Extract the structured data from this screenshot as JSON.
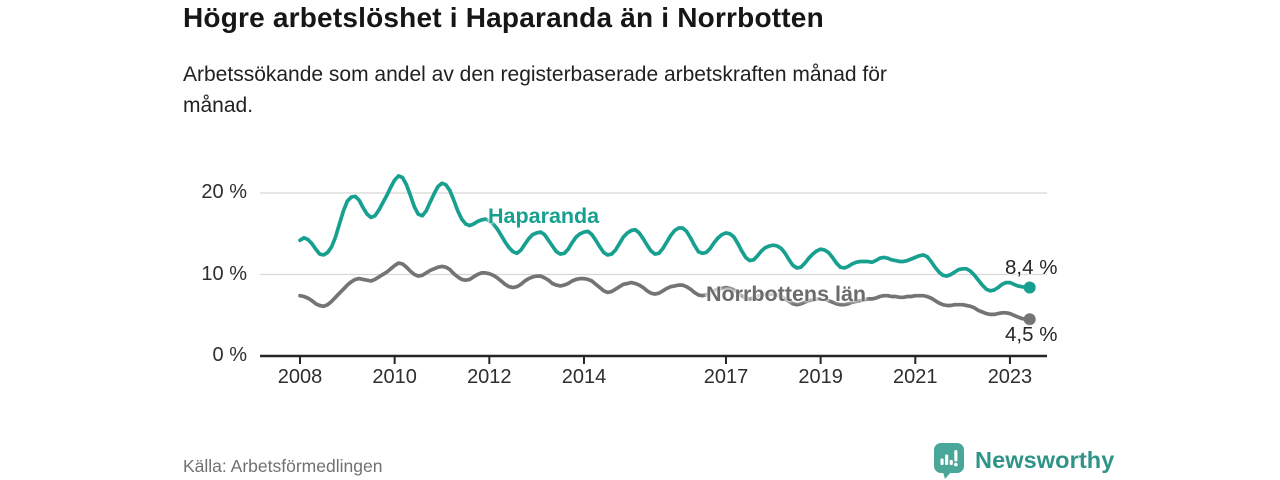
{
  "header": {
    "title": "Högre arbetslöshet i Haparanda än i Norrbotten",
    "subtitle": "Arbetssökande som andel av den registerbaserade arbetskraften månad för\nmånad."
  },
  "footer": {
    "source": "Källa: Arbetsförmedlingen",
    "brand": "Newsworthy",
    "brand_icon": "newsworthy-chart-bubble-icon"
  },
  "colors": {
    "haparanda": "#17a08f",
    "norrbotten": "#747474",
    "grid": "#d8d8d8",
    "axis": "#262626",
    "axis_text": "#2e2e2e",
    "title_text": "#161616",
    "muted_text": "#717171",
    "brand_icon_bg": "#4ba69a",
    "brand_text": "#2f9488"
  },
  "chart_data": {
    "type": "line",
    "title": "Högre arbetslöshet i Haparanda än i Norrbotten",
    "subtitle": "Arbetssökande som andel av den registerbaserade arbetskraften månad för månad.",
    "xlabel": "",
    "ylabel": "",
    "x_start_year": 2008,
    "x_step_months": 1,
    "xlim": [
      2007.2,
      2023.8
    ],
    "ylim": [
      0,
      24
    ],
    "grid": "horizontal",
    "legend_position": "inline-labels",
    "x_ticks": [
      2008,
      2010,
      2012,
      2014,
      2017,
      2019,
      2021,
      2023
    ],
    "x_tick_labels": [
      "2008",
      "2010",
      "2012",
      "2014",
      "2017",
      "2019",
      "2021",
      "2023"
    ],
    "y_ticks": [
      0,
      10,
      20
    ],
    "y_tick_labels": [
      "0 %",
      "10 %",
      "20 %"
    ],
    "series": [
      {
        "name": "Haparanda",
        "color": "#17a08f",
        "end_label": "8,4 %",
        "end_value": 8.4,
        "values": [
          14.2,
          14.5,
          14.3,
          13.8,
          13.1,
          12.5,
          12.4,
          12.7,
          13.4,
          14.6,
          16.2,
          17.8,
          19.0,
          19.5,
          19.6,
          19.1,
          18.2,
          17.4,
          17.0,
          17.2,
          17.9,
          18.8,
          19.7,
          20.7,
          21.6,
          22.1,
          21.9,
          21.0,
          19.7,
          18.3,
          17.4,
          17.2,
          17.8,
          18.9,
          19.9,
          20.8,
          21.2,
          21.0,
          20.3,
          19.1,
          17.8,
          16.8,
          16.2,
          16.0,
          16.2,
          16.5,
          16.7,
          16.8,
          16.6,
          16.2,
          15.6,
          14.8,
          14.0,
          13.3,
          12.8,
          12.6,
          13.0,
          13.7,
          14.4,
          14.9,
          15.1,
          15.2,
          14.9,
          14.2,
          13.5,
          12.8,
          12.5,
          12.6,
          13.1,
          13.9,
          14.6,
          15.0,
          15.2,
          15.3,
          14.9,
          14.2,
          13.4,
          12.7,
          12.4,
          12.5,
          13.0,
          13.8,
          14.6,
          15.1,
          15.4,
          15.5,
          15.1,
          14.4,
          13.6,
          12.9,
          12.5,
          12.6,
          13.2,
          14.0,
          14.8,
          15.4,
          15.7,
          15.7,
          15.3,
          14.5,
          13.6,
          12.8,
          12.6,
          12.7,
          13.2,
          13.9,
          14.5,
          14.9,
          15.1,
          15.0,
          14.6,
          13.8,
          12.9,
          12.1,
          11.7,
          11.8,
          12.3,
          12.9,
          13.3,
          13.5,
          13.6,
          13.5,
          13.2,
          12.6,
          11.8,
          11.1,
          10.8,
          10.9,
          11.4,
          12.0,
          12.5,
          12.9,
          13.1,
          13.0,
          12.7,
          12.1,
          11.4,
          10.9,
          10.8,
          11.0,
          11.3,
          11.5,
          11.6,
          11.6,
          11.6,
          11.5,
          11.7,
          12.0,
          12.1,
          12.0,
          11.8,
          11.7,
          11.6,
          11.6,
          11.7,
          11.9,
          12.1,
          12.3,
          12.4,
          12.2,
          11.6,
          10.9,
          10.3,
          9.9,
          9.8,
          10.0,
          10.3,
          10.6,
          10.7,
          10.7,
          10.4,
          9.9,
          9.3,
          8.7,
          8.2,
          8.0,
          8.1,
          8.4,
          8.8,
          9.0,
          9.0,
          8.8,
          8.6,
          8.5,
          8.4,
          8.4
        ]
      },
      {
        "name": "Norrbottens län",
        "color": "#747474",
        "end_label": "4,5 %",
        "end_value": 4.5,
        "values": [
          7.4,
          7.3,
          7.1,
          6.8,
          6.4,
          6.2,
          6.1,
          6.3,
          6.7,
          7.2,
          7.7,
          8.2,
          8.7,
          9.1,
          9.4,
          9.5,
          9.4,
          9.3,
          9.2,
          9.4,
          9.7,
          10.0,
          10.3,
          10.7,
          11.1,
          11.4,
          11.3,
          10.9,
          10.4,
          10.0,
          9.8,
          9.9,
          10.2,
          10.5,
          10.7,
          10.9,
          11.0,
          10.9,
          10.6,
          10.1,
          9.7,
          9.4,
          9.3,
          9.4,
          9.7,
          10.0,
          10.2,
          10.2,
          10.1,
          9.9,
          9.6,
          9.2,
          8.8,
          8.5,
          8.4,
          8.5,
          8.8,
          9.2,
          9.5,
          9.7,
          9.8,
          9.8,
          9.6,
          9.3,
          8.9,
          8.7,
          8.6,
          8.7,
          8.9,
          9.2,
          9.4,
          9.5,
          9.5,
          9.4,
          9.2,
          8.8,
          8.4,
          8.0,
          7.8,
          7.9,
          8.2,
          8.5,
          8.8,
          8.9,
          9.0,
          8.9,
          8.7,
          8.4,
          8.0,
          7.7,
          7.6,
          7.7,
          8.0,
          8.3,
          8.5,
          8.6,
          8.7,
          8.7,
          8.5,
          8.2,
          7.8,
          7.5,
          7.4,
          7.5,
          7.7,
          8.0,
          8.2,
          8.3,
          8.4,
          8.3,
          8.1,
          7.8,
          7.4,
          7.1,
          7.0,
          7.1,
          7.3,
          7.5,
          7.6,
          7.6,
          7.6,
          7.5,
          7.3,
          7.0,
          6.7,
          6.4,
          6.3,
          6.4,
          6.6,
          6.8,
          6.9,
          7.0,
          7.0,
          7.0,
          6.8,
          6.6,
          6.4,
          6.3,
          6.3,
          6.4,
          6.6,
          6.7,
          6.8,
          6.9,
          7.0,
          7.0,
          7.1,
          7.3,
          7.4,
          7.4,
          7.3,
          7.3,
          7.2,
          7.2,
          7.3,
          7.3,
          7.4,
          7.4,
          7.4,
          7.3,
          7.1,
          6.8,
          6.5,
          6.3,
          6.2,
          6.2,
          6.3,
          6.3,
          6.3,
          6.2,
          6.1,
          5.9,
          5.6,
          5.4,
          5.2,
          5.1,
          5.1,
          5.2,
          5.3,
          5.3,
          5.2,
          5.0,
          4.8,
          4.6,
          4.5,
          4.5
        ]
      }
    ]
  }
}
